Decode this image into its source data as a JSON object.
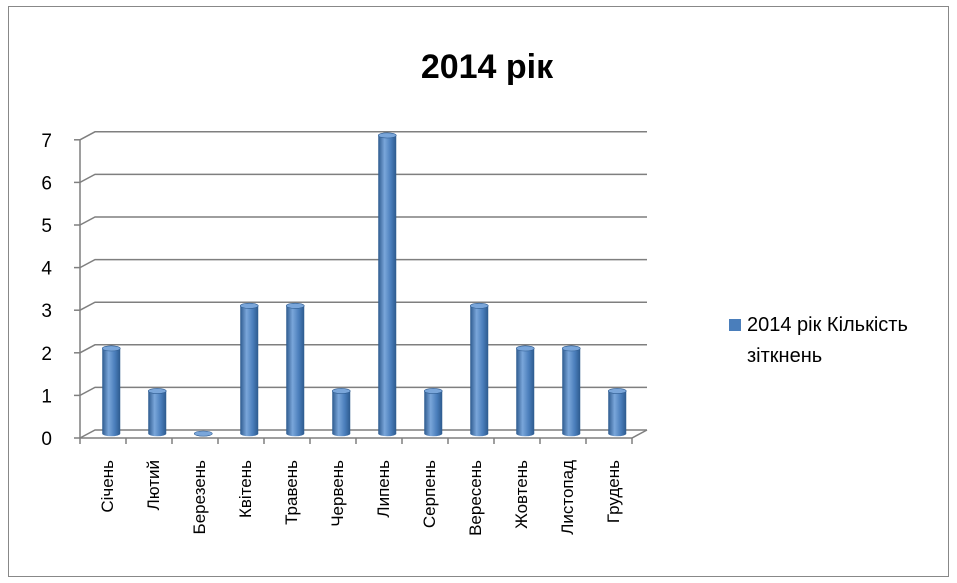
{
  "chart_data": {
    "type": "bar",
    "title": "2014 рік",
    "categories": [
      "Січень",
      "Лютий",
      "Березень",
      "Квітень",
      "Травень",
      "Червень",
      "Липень",
      "Серпень",
      "Вересень",
      "Жовтень",
      "Листопад",
      "Грудень"
    ],
    "series": [
      {
        "name": "2014 рік Кількість зіткнень",
        "values": [
          2,
          1,
          0,
          3,
          3,
          1,
          7,
          1,
          3,
          2,
          2,
          1
        ]
      }
    ],
    "ylim": [
      0,
      7
    ],
    "yticks": [
      "0",
      "1",
      "2",
      "3",
      "4",
      "5",
      "6",
      "7"
    ],
    "legend": {
      "position": "right",
      "lines": [
        "2014 рік Кількість",
        "зіткнень"
      ]
    },
    "grid": true,
    "colors": {
      "bar": "#4a7ebb",
      "bar_dark": "#2d5a8e",
      "bar_light": "#7aa6da",
      "grid": "#7f7f7f",
      "legend_swatch": "#4a7ebb"
    }
  }
}
